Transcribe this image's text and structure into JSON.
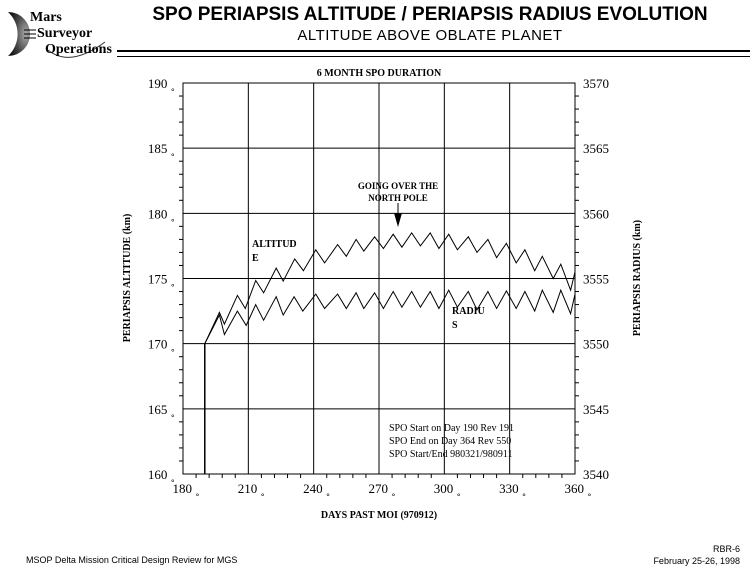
{
  "logo": {
    "line1": "Mars",
    "line2": "Surveyor",
    "line3": "Operations"
  },
  "header": {
    "title": "SPO PERIAPSIS ALTITUDE / PERIAPSIS RADIUS EVOLUTION",
    "subtitle": "ALTITUDE ABOVE OBLATE PLANET"
  },
  "footer": {
    "left": "MSOP Delta Mission Critical Design Review for MGS",
    "id": "RBR-6",
    "date": "February 25-26, 1998"
  },
  "chart_data": {
    "type": "line",
    "title": "6 MONTH SPO DURATION",
    "xlabel": "DAYS PAST MOI (970912)",
    "ylabel": "PERIAPSIS ALTITUDE (km)",
    "y2label": "PERIAPSIS RADIUS (km)",
    "xlim": [
      180,
      360
    ],
    "ylim": [
      160,
      190
    ],
    "y2lim": [
      3540,
      3570
    ],
    "xticks": [
      "180",
      "210",
      "240",
      "270",
      "300",
      "330",
      "360"
    ],
    "yticks": [
      "160",
      "165",
      "170",
      "175",
      "180",
      "185",
      "190"
    ],
    "y2ticks": [
      "3540",
      "3545",
      "3550",
      "3555",
      "3560",
      "3565",
      "3570"
    ],
    "grid": true,
    "series": [
      {
        "name": "ALTITUDE",
        "axis": "left",
        "x": [
          190,
          196.7,
          199,
          205,
          208.6,
          213.4,
          217,
          222.8,
          226,
          231.3,
          235.3,
          241,
          245,
          251,
          255,
          259.5,
          263,
          268,
          272,
          276.5,
          280.5,
          285,
          289,
          293.5,
          297.5,
          302,
          306,
          311,
          315,
          320,
          324,
          328.5,
          333,
          337,
          341.5,
          345,
          350,
          353.5,
          358,
          360
        ],
        "y": [
          170.0,
          172.4,
          171.5,
          173.7,
          172.7,
          174.85,
          173.9,
          175.8,
          174.8,
          176.5,
          175.6,
          177.2,
          176.2,
          177.6,
          176.7,
          178.0,
          177.1,
          178.2,
          177.3,
          178.4,
          177.4,
          178.5,
          177.5,
          178.5,
          177.3,
          178.4,
          177.2,
          178.2,
          177.0,
          178.0,
          176.6,
          177.7,
          176.2,
          177.2,
          175.6,
          176.7,
          175.0,
          176.1,
          174.1,
          175.5
        ]
      },
      {
        "name": "RADIUS",
        "axis": "right",
        "x": [
          190,
          196.7,
          199,
          205,
          209,
          213.4,
          217,
          222.8,
          226,
          231,
          235,
          241,
          245,
          251,
          255,
          259.5,
          263,
          268,
          272,
          276.5,
          280.5,
          285,
          289,
          293.5,
          297.5,
          302,
          306,
          311,
          315,
          320,
          324,
          328.5,
          333,
          337,
          341.5,
          345,
          350,
          353.5,
          358,
          360
        ],
        "y": [
          3550.0,
          3552.2,
          3550.7,
          3552.5,
          3551.4,
          3553.0,
          3551.8,
          3553.6,
          3552.2,
          3553.6,
          3552.5,
          3553.8,
          3552.7,
          3553.8,
          3552.7,
          3553.9,
          3552.7,
          3553.9,
          3552.7,
          3554.0,
          3552.8,
          3554.0,
          3552.8,
          3554.0,
          3552.7,
          3554.1,
          3552.8,
          3554.0,
          3552.6,
          3554.0,
          3552.7,
          3554.05,
          3552.7,
          3554.0,
          3552.5,
          3554.1,
          3552.4,
          3554.1,
          3552.3,
          3553.8
        ]
      }
    ],
    "annotations": [
      {
        "text_line1": "GOING OVER THE",
        "text_line2": "NORTH POLE",
        "x": 278,
        "y": 178.5
      },
      {
        "text_line1": "ALTITUD",
        "text_line2": "E"
      },
      {
        "text_line1": "RADIU",
        "text_line2": "S"
      }
    ],
    "notes": [
      "SPO Start on Day 190 Rev 191",
      "SPO End on Day 364 Rev 550",
      "SPO Start/End 980321/980911"
    ],
    "line_color": "#000000"
  }
}
